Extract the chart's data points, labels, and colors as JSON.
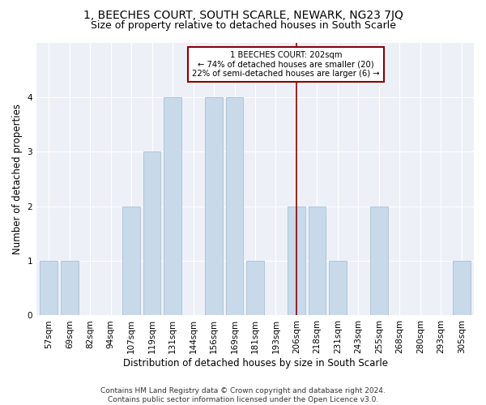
{
  "title": "1, BEECHES COURT, SOUTH SCARLE, NEWARK, NG23 7JQ",
  "subtitle": "Size of property relative to detached houses in South Scarle",
  "xlabel": "Distribution of detached houses by size in South Scarle",
  "ylabel": "Number of detached properties",
  "categories": [
    "57sqm",
    "69sqm",
    "82sqm",
    "94sqm",
    "107sqm",
    "119sqm",
    "131sqm",
    "144sqm",
    "156sqm",
    "169sqm",
    "181sqm",
    "193sqm",
    "206sqm",
    "218sqm",
    "231sqm",
    "243sqm",
    "255sqm",
    "268sqm",
    "280sqm",
    "293sqm",
    "305sqm"
  ],
  "values": [
    1,
    1,
    0,
    0,
    2,
    3,
    4,
    0,
    4,
    4,
    1,
    0,
    2,
    2,
    1,
    0,
    2,
    0,
    0,
    0,
    1
  ],
  "bar_color": "#c8d9ea",
  "bar_edgecolor": "#a8c0d6",
  "vline_x_index": 12,
  "vline_color": "#8b0000",
  "annotation_text": "1 BEECHES COURT: 202sqm\n← 74% of detached houses are smaller (20)\n22% of semi-detached houses are larger (6) →",
  "annotation_box_color": "#8b0000",
  "ylim": [
    0,
    5
  ],
  "yticks": [
    0,
    1,
    2,
    3,
    4
  ],
  "footer": "Contains HM Land Registry data © Crown copyright and database right 2024.\nContains public sector information licensed under the Open Licence v3.0.",
  "background_color": "#edf1f7",
  "title_fontsize": 10,
  "subtitle_fontsize": 9,
  "ylabel_fontsize": 8.5,
  "xlabel_fontsize": 8.5,
  "tick_fontsize": 7.5,
  "footer_fontsize": 6.5
}
